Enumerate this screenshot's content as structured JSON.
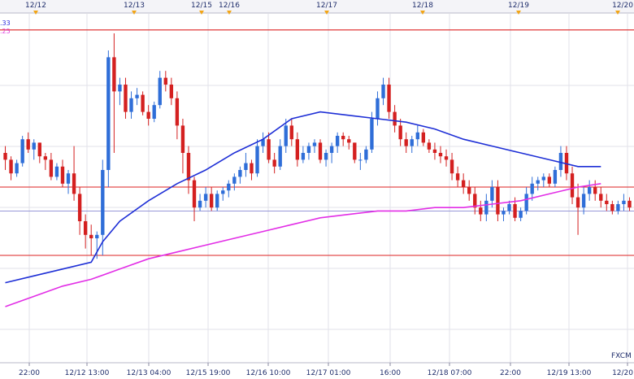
{
  "chart_data": {
    "type": "candlestick",
    "provider_label": "FXCM M",
    "corner_labels": [
      {
        "text": ".33",
        "color": "#2a2adf"
      },
      {
        "text": ".25",
        "color": "#e040e0"
      }
    ],
    "date_markers": [
      "12/12",
      "12/13",
      "12/15",
      "12/16",
      "12/17",
      "12/18",
      "12/19",
      "12/20"
    ],
    "x_tick_labels": [
      "22:00",
      "12/12 13:00",
      "12/13 04:00",
      "12/15 19:00",
      "12/16 10:00",
      "12/17 01:00",
      "16:00",
      "12/18 07:00",
      "22:00",
      "12/19 13:00",
      "12/20"
    ],
    "ylim": [
      0,
      100
    ],
    "horizontal_lines": [
      {
        "value": 96,
        "color": "#dd2222"
      },
      {
        "value": 50,
        "color": "#dd2222"
      },
      {
        "value": 43,
        "color": "#7777cc"
      },
      {
        "value": 30,
        "color": "#dd2222"
      }
    ],
    "candles": [
      [
        60,
        62,
        55,
        58
      ],
      [
        58,
        59,
        52,
        54
      ],
      [
        54,
        58,
        53,
        57
      ],
      [
        57,
        65,
        56,
        64
      ],
      [
        64,
        66,
        60,
        61
      ],
      [
        61,
        64,
        58,
        63
      ],
      [
        63,
        63,
        57,
        59
      ],
      [
        59,
        60,
        55,
        58
      ],
      [
        58,
        60,
        52,
        53
      ],
      [
        53,
        57,
        52,
        56
      ],
      [
        56,
        58,
        50,
        51
      ],
      [
        51,
        55,
        48,
        54
      ],
      [
        54,
        62,
        46,
        48
      ],
      [
        48,
        50,
        36,
        40
      ],
      [
        40,
        42,
        32,
        36
      ],
      [
        36,
        39,
        30,
        35
      ],
      [
        35,
        37,
        29,
        36
      ],
      [
        36,
        58,
        30,
        55
      ],
      [
        55,
        90,
        50,
        88
      ],
      [
        88,
        95,
        60,
        78
      ],
      [
        78,
        82,
        74,
        80
      ],
      [
        80,
        82,
        70,
        72
      ],
      [
        72,
        78,
        70,
        76
      ],
      [
        76,
        79,
        74,
        77
      ],
      [
        77,
        78,
        71,
        72
      ],
      [
        72,
        74,
        68,
        70
      ],
      [
        70,
        75,
        69,
        74
      ],
      [
        74,
        84,
        73,
        82
      ],
      [
        82,
        84,
        78,
        80
      ],
      [
        80,
        82,
        74,
        76
      ],
      [
        76,
        78,
        64,
        68
      ],
      [
        68,
        70,
        54,
        60
      ],
      [
        60,
        62,
        48,
        52
      ],
      [
        52,
        53,
        40,
        44
      ],
      [
        44,
        48,
        43,
        46
      ],
      [
        46,
        50,
        44,
        48
      ],
      [
        48,
        50,
        43,
        44
      ],
      [
        44,
        49,
        43,
        48
      ],
      [
        48,
        50,
        46,
        49
      ],
      [
        49,
        52,
        47,
        51
      ],
      [
        51,
        54,
        49,
        53
      ],
      [
        53,
        56,
        51,
        55
      ],
      [
        55,
        60,
        53,
        57
      ],
      [
        57,
        58,
        52,
        54
      ],
      [
        54,
        64,
        53,
        62
      ],
      [
        62,
        66,
        60,
        64
      ],
      [
        64,
        66,
        57,
        58
      ],
      [
        58,
        60,
        54,
        56
      ],
      [
        56,
        64,
        55,
        62
      ],
      [
        62,
        70,
        60,
        68
      ],
      [
        68,
        70,
        62,
        64
      ],
      [
        64,
        66,
        56,
        58
      ],
      [
        58,
        62,
        57,
        60
      ],
      [
        60,
        63,
        58,
        62
      ],
      [
        62,
        64,
        60,
        63
      ],
      [
        63,
        64,
        57,
        58
      ],
      [
        58,
        61,
        56,
        60
      ],
      [
        60,
        63,
        57,
        62
      ],
      [
        62,
        66,
        60,
        65
      ],
      [
        65,
        66,
        62,
        64
      ],
      [
        64,
        65,
        61,
        63
      ],
      [
        63,
        63,
        57,
        58
      ],
      [
        58,
        60,
        55,
        58
      ],
      [
        58,
        62,
        57,
        61
      ],
      [
        61,
        72,
        60,
        70
      ],
      [
        70,
        78,
        68,
        76
      ],
      [
        76,
        82,
        74,
        80
      ],
      [
        80,
        82,
        70,
        72
      ],
      [
        72,
        74,
        66,
        68
      ],
      [
        68,
        70,
        62,
        64
      ],
      [
        64,
        66,
        60,
        62
      ],
      [
        62,
        65,
        60,
        64
      ],
      [
        64,
        68,
        62,
        66
      ],
      [
        66,
        67,
        62,
        63
      ],
      [
        63,
        64,
        60,
        61
      ],
      [
        61,
        63,
        58,
        60
      ],
      [
        60,
        62,
        57,
        59
      ],
      [
        59,
        61,
        56,
        58
      ],
      [
        58,
        60,
        52,
        54
      ],
      [
        54,
        56,
        50,
        52
      ],
      [
        52,
        54,
        48,
        50
      ],
      [
        50,
        52,
        46,
        48
      ],
      [
        48,
        50,
        42,
        44
      ],
      [
        44,
        46,
        40,
        42
      ],
      [
        42,
        48,
        40,
        46
      ],
      [
        46,
        52,
        44,
        50
      ],
      [
        50,
        52,
        40,
        42
      ],
      [
        42,
        44,
        40,
        43
      ],
      [
        43,
        46,
        42,
        45
      ],
      [
        45,
        47,
        40,
        41
      ],
      [
        41,
        44,
        40,
        43
      ],
      [
        43,
        50,
        42,
        48
      ],
      [
        48,
        53,
        46,
        51
      ],
      [
        51,
        53,
        49,
        52
      ],
      [
        52,
        54,
        50,
        53
      ],
      [
        53,
        54,
        50,
        51
      ],
      [
        51,
        56,
        50,
        55
      ],
      [
        55,
        62,
        53,
        60
      ],
      [
        60,
        62,
        52,
        54
      ],
      [
        54,
        56,
        45,
        47
      ],
      [
        47,
        51,
        36,
        44
      ],
      [
        44,
        50,
        42,
        48
      ],
      [
        48,
        52,
        46,
        50
      ],
      [
        50,
        52,
        46,
        48
      ],
      [
        48,
        50,
        44,
        46
      ],
      [
        46,
        48,
        43,
        45
      ],
      [
        45,
        46,
        42,
        43
      ],
      [
        43,
        46,
        42,
        45
      ],
      [
        45,
        48,
        43,
        46
      ],
      [
        46,
        47,
        43,
        44
      ]
    ],
    "ma_blue": [
      [
        0,
        22
      ],
      [
        5,
        24
      ],
      [
        10,
        26
      ],
      [
        15,
        28
      ],
      [
        17,
        34
      ],
      [
        20,
        40
      ],
      [
        25,
        46
      ],
      [
        30,
        51
      ],
      [
        35,
        55
      ],
      [
        40,
        60
      ],
      [
        45,
        64
      ],
      [
        50,
        70
      ],
      [
        55,
        72
      ],
      [
        60,
        71
      ],
      [
        65,
        70
      ],
      [
        70,
        69
      ],
      [
        75,
        67
      ],
      [
        80,
        64
      ],
      [
        85,
        62
      ],
      [
        90,
        60
      ],
      [
        95,
        58
      ],
      [
        100,
        56
      ],
      [
        104,
        56
      ]
    ],
    "ma_magenta": [
      [
        0,
        15
      ],
      [
        5,
        18
      ],
      [
        10,
        21
      ],
      [
        15,
        23
      ],
      [
        20,
        26
      ],
      [
        25,
        29
      ],
      [
        30,
        31
      ],
      [
        35,
        33
      ],
      [
        40,
        35
      ],
      [
        45,
        37
      ],
      [
        50,
        39
      ],
      [
        55,
        41
      ],
      [
        60,
        42
      ],
      [
        65,
        43
      ],
      [
        70,
        43
      ],
      [
        75,
        44
      ],
      [
        80,
        44
      ],
      [
        85,
        45
      ],
      [
        90,
        46
      ],
      [
        95,
        48
      ],
      [
        100,
        50
      ],
      [
        104,
        51
      ]
    ],
    "colors": {
      "bull": "#2f6ed8",
      "bear": "#d42020",
      "ma_blue": "#1e2fd6",
      "ma_magenta": "#e22ee6",
      "axis_text": "#1f2d6b",
      "marker": "#f2a516",
      "grid": "#e2e2ea"
    }
  }
}
